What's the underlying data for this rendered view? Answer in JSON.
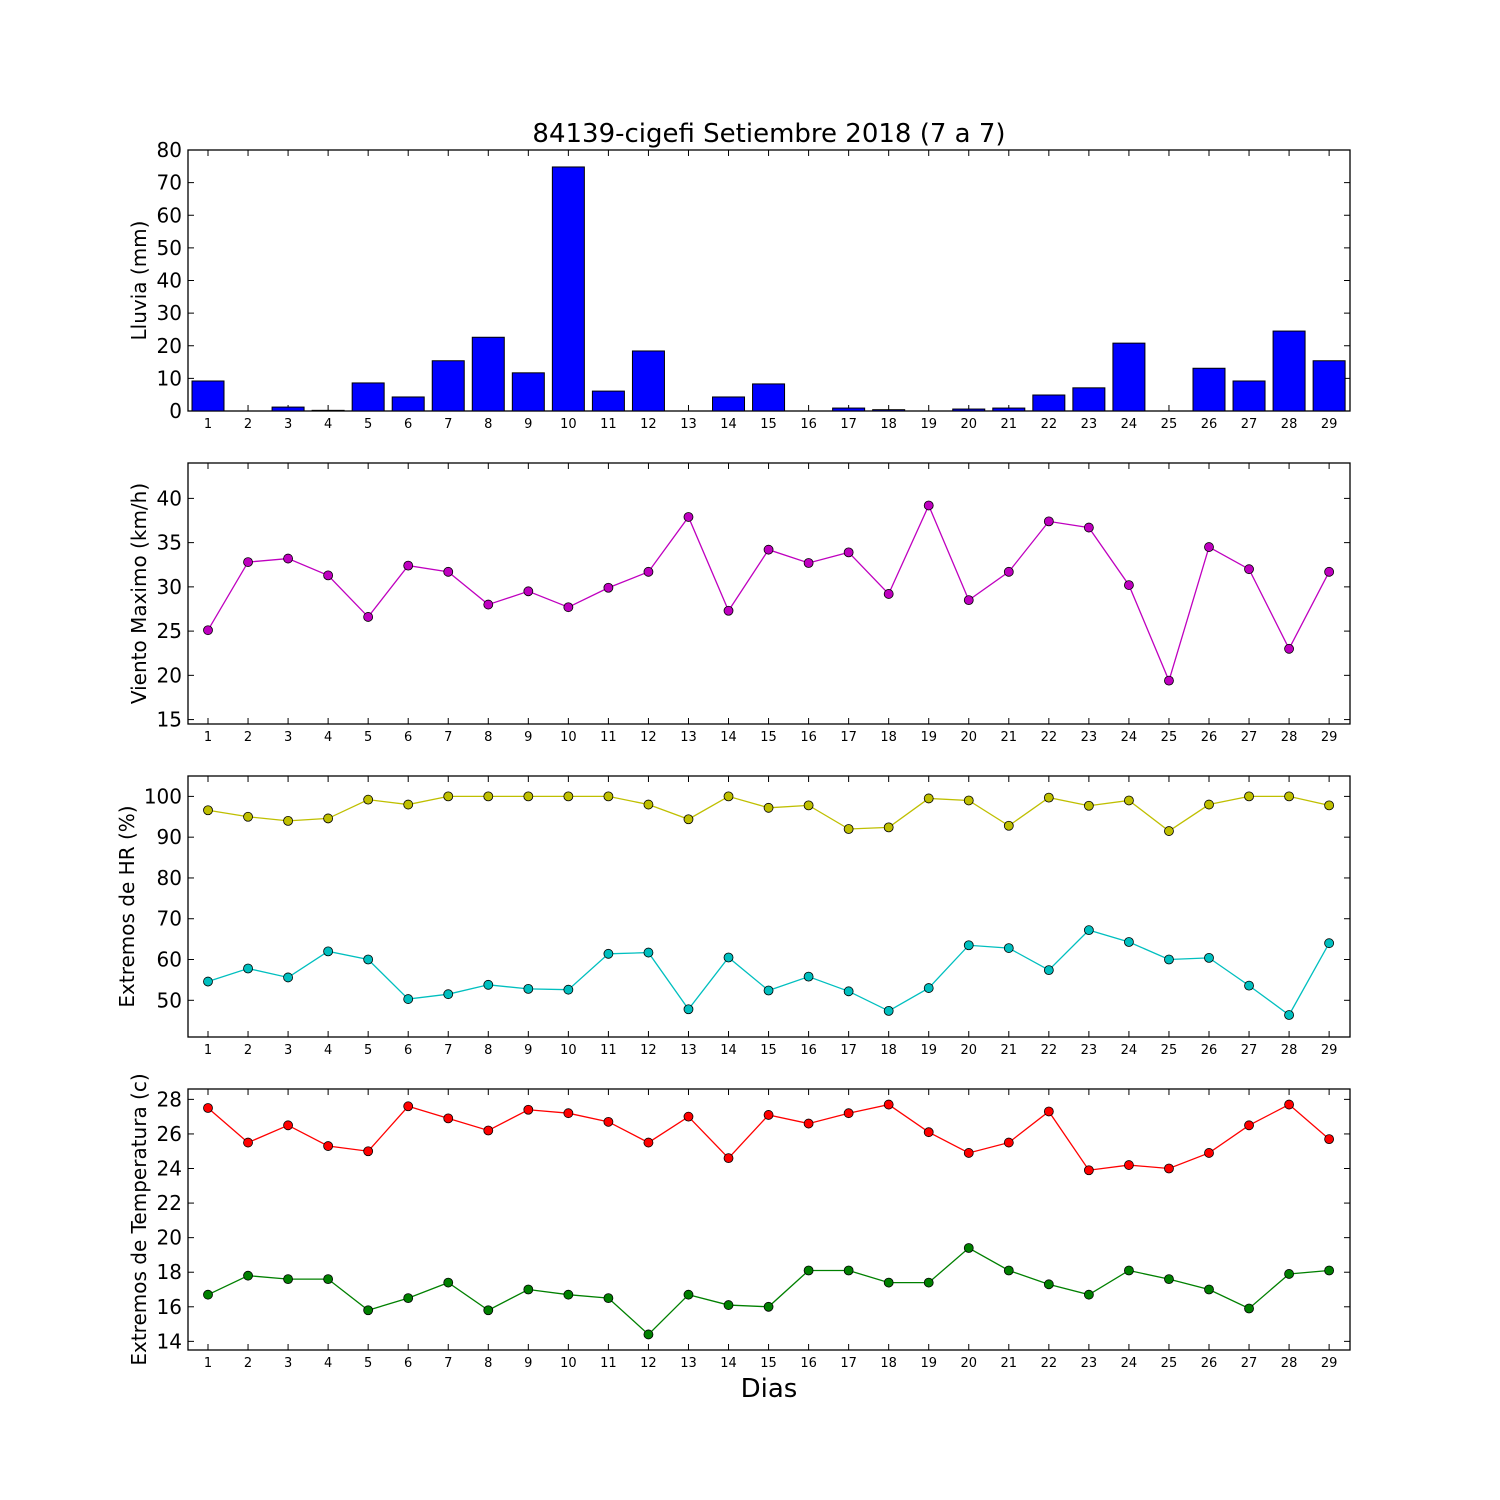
{
  "title": "84139-cigefi Setiembre 2018  (7 a 7)",
  "xlabel": "Dias",
  "days": [
    "1",
    "2",
    "3",
    "4",
    "5",
    "6",
    "7",
    "8",
    "9",
    "10",
    "11",
    "12",
    "13",
    "14",
    "15",
    "16",
    "17",
    "18",
    "19",
    "20",
    "21",
    "22",
    "23",
    "24",
    "25",
    "26",
    "27",
    "28",
    "29"
  ],
  "chart_data": [
    {
      "type": "bar",
      "ylabel": "Lluvia (mm)",
      "ylim": [
        0,
        80
      ],
      "yticks": [
        "0",
        "10",
        "20",
        "30",
        "40",
        "50",
        "60",
        "70",
        "80"
      ],
      "categories": [
        "1",
        "2",
        "3",
        "4",
        "5",
        "6",
        "7",
        "8",
        "9",
        "10",
        "11",
        "12",
        "13",
        "14",
        "15",
        "16",
        "17",
        "18",
        "19",
        "20",
        "21",
        "22",
        "23",
        "24",
        "25",
        "26",
        "27",
        "28",
        "29"
      ],
      "colors": {
        "bar": "#0000ff"
      },
      "values": [
        9.2,
        0,
        1.2,
        0.2,
        8.6,
        4.3,
        15.4,
        22.6,
        11.7,
        74.8,
        6.1,
        18.4,
        0,
        4.3,
        8.3,
        0,
        0.9,
        0.4,
        0,
        0.6,
        0.9,
        4.9,
        7.1,
        20.8,
        0,
        13.1,
        9.2,
        24.5,
        15.4
      ]
    },
    {
      "type": "line",
      "ylabel": "Viento Maximo (km/h)",
      "ylim": [
        14.5,
        44
      ],
      "yticks": [
        "15",
        "20",
        "25",
        "30",
        "35",
        "40"
      ],
      "categories": [
        "1",
        "2",
        "3",
        "4",
        "5",
        "6",
        "7",
        "8",
        "9",
        "10",
        "11",
        "12",
        "13",
        "14",
        "15",
        "16",
        "17",
        "18",
        "19",
        "20",
        "21",
        "22",
        "23",
        "24",
        "25",
        "26",
        "27",
        "28",
        "29"
      ],
      "colors": {
        "line": "#bf00bf"
      },
      "values": [
        25.1,
        32.8,
        33.2,
        31.3,
        26.6,
        32.4,
        31.7,
        28.0,
        29.5,
        27.7,
        29.9,
        31.7,
        37.9,
        27.3,
        34.2,
        32.7,
        33.9,
        29.2,
        39.2,
        28.5,
        31.7,
        37.4,
        36.7,
        30.2,
        19.4,
        34.5,
        32.0,
        23.0,
        31.7
      ]
    },
    {
      "type": "line",
      "ylabel": "Extremos de HR (%)",
      "ylim": [
        41,
        105
      ],
      "yticks": [
        "50",
        "60",
        "70",
        "80",
        "90",
        "100"
      ],
      "categories": [
        "1",
        "2",
        "3",
        "4",
        "5",
        "6",
        "7",
        "8",
        "9",
        "10",
        "11",
        "12",
        "13",
        "14",
        "15",
        "16",
        "17",
        "18",
        "19",
        "20",
        "21",
        "22",
        "23",
        "24",
        "25",
        "26",
        "27",
        "28",
        "29"
      ],
      "colors": {
        "max": "#bfbf00",
        "min": "#00bfbf"
      },
      "series": [
        {
          "values": [
            96.6,
            95.0,
            94.0,
            94.6,
            99.2,
            98.0,
            100,
            100,
            100,
            100,
            100,
            98.0,
            94.4,
            100,
            97.2,
            97.8,
            92.0,
            92.4,
            99.5,
            99.0,
            92.8,
            99.7,
            97.7,
            99.0,
            91.5,
            98.0,
            100,
            100,
            97.8
          ]
        },
        {
          "values": [
            54.6,
            57.8,
            55.6,
            62.0,
            60.0,
            50.3,
            51.5,
            53.8,
            52.8,
            52.6,
            61.4,
            61.7,
            47.8,
            60.5,
            52.4,
            55.8,
            52.2,
            47.4,
            53.0,
            63.5,
            62.8,
            57.4,
            67.2,
            64.3,
            60.0,
            60.4,
            53.6,
            46.4,
            64.0
          ]
        }
      ]
    },
    {
      "type": "line",
      "ylabel": "Extremos de Temperatura (c)",
      "ylim": [
        13.5,
        28.6
      ],
      "yticks": [
        "14",
        "16",
        "18",
        "20",
        "22",
        "24",
        "26",
        "28"
      ],
      "categories": [
        "1",
        "2",
        "3",
        "4",
        "5",
        "6",
        "7",
        "8",
        "9",
        "10",
        "11",
        "12",
        "13",
        "14",
        "15",
        "16",
        "17",
        "18",
        "19",
        "20",
        "21",
        "22",
        "23",
        "24",
        "25",
        "26",
        "27",
        "28",
        "29"
      ],
      "colors": {
        "max": "#ff0000",
        "min": "#008000"
      },
      "series": [
        {
          "values": [
            27.5,
            25.5,
            26.5,
            25.3,
            25.0,
            27.6,
            26.9,
            26.2,
            27.4,
            27.2,
            26.7,
            25.5,
            27.0,
            24.6,
            27.1,
            26.6,
            27.2,
            27.7,
            26.1,
            24.9,
            25.5,
            27.3,
            23.9,
            24.2,
            24.0,
            24.9,
            26.5,
            27.7,
            25.7
          ]
        },
        {
          "values": [
            16.7,
            17.8,
            17.6,
            17.6,
            15.8,
            16.5,
            17.4,
            15.8,
            17.0,
            16.7,
            16.5,
            14.4,
            16.7,
            16.1,
            16.0,
            18.1,
            18.1,
            17.4,
            17.4,
            19.4,
            18.1,
            17.3,
            16.7,
            18.1,
            17.6,
            17.0,
            15.9,
            17.9,
            18.1
          ]
        }
      ]
    }
  ]
}
